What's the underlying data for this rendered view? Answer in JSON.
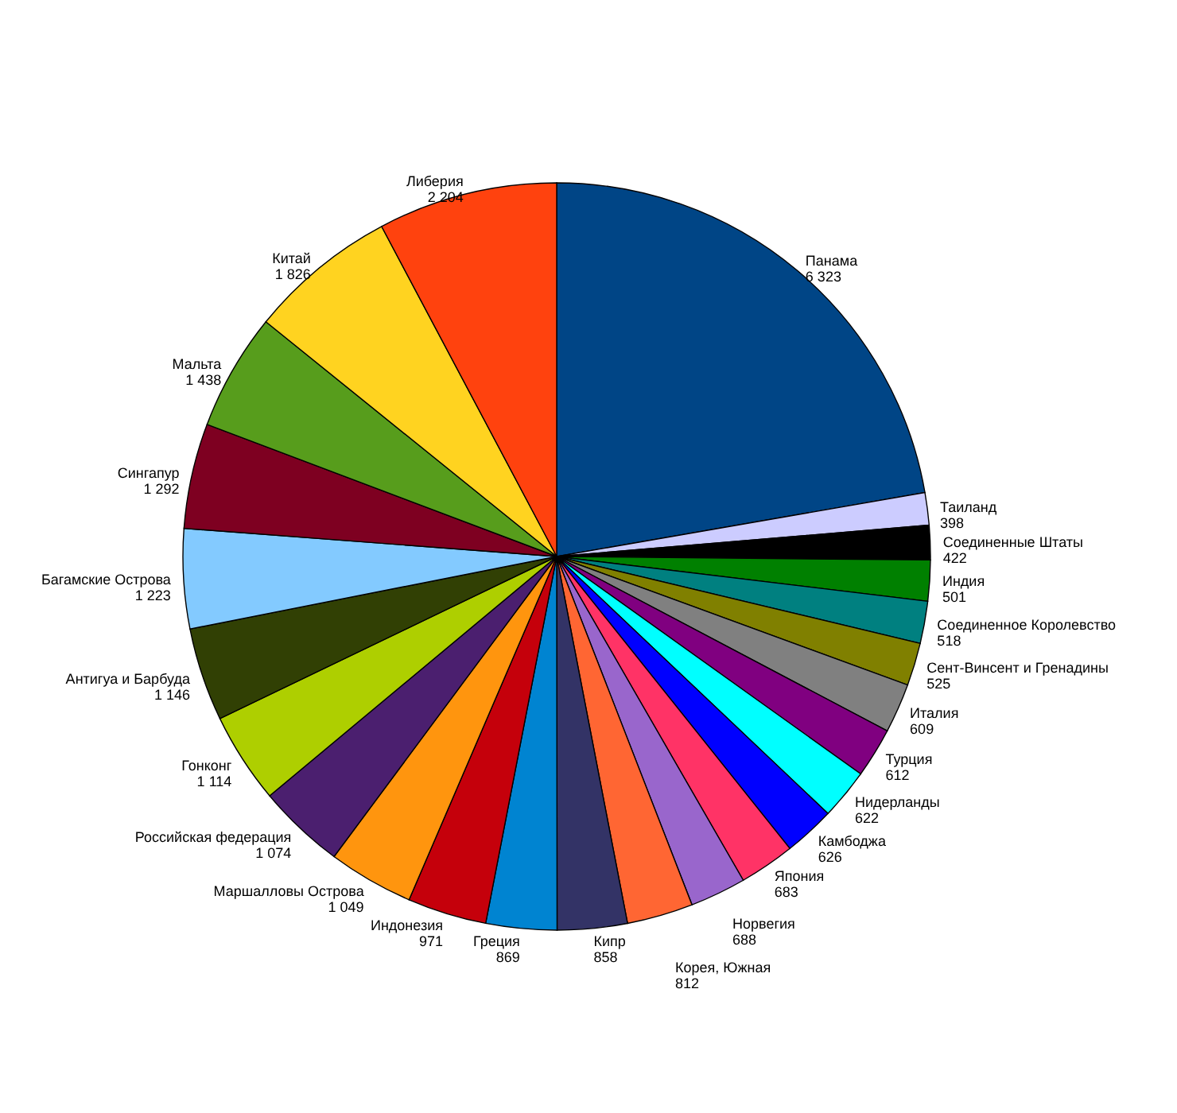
{
  "chart_data": {
    "type": "pie",
    "categories": [
      "Панама",
      "Таиланд",
      "Соединенные Штаты",
      "Индия",
      "Соединенное Королевство",
      "Сент-Винсент и Гренадины",
      "Италия",
      "Турция",
      "Нидерланды",
      "Камбоджа",
      "Япония",
      "Норвегия",
      "Корея, Южная",
      "Кипр",
      "Греция",
      "Индонезия",
      "Маршалловы Острова",
      "Российская федерация",
      "Гонконг",
      "Антигуа и Барбуда",
      "Багамские Острова",
      "Сингапур",
      "Мальта",
      "Китай",
      "Либерия"
    ],
    "values": [
      6323,
      398,
      422,
      501,
      518,
      525,
      609,
      612,
      622,
      626,
      683,
      688,
      812,
      858,
      869,
      971,
      1049,
      1074,
      1114,
      1146,
      1223,
      1292,
      1438,
      1826,
      2204
    ],
    "value_labels": [
      "6 323",
      "398",
      "422",
      "501",
      "518",
      "525",
      "609",
      "612",
      "622",
      "626",
      "683",
      "688",
      "812",
      "858",
      "869",
      "971",
      "1 049",
      "1 074",
      "1 114",
      "1 146",
      "1 223",
      "1 292",
      "1 438",
      "1 826",
      "2 204"
    ],
    "colors": [
      "#004586",
      "#ccccff",
      "#000000",
      "#008000",
      "#008080",
      "#808000",
      "#808080",
      "#800080",
      "#00ffff",
      "#0000ff",
      "#ff3366",
      "#9966cc",
      "#ff6633",
      "#333366",
      "#0084d1",
      "#c5000b",
      "#ff950e",
      "#4b1f6f",
      "#aecf00",
      "#314004",
      "#83caff",
      "#7e0021",
      "#579d1c",
      "#ffd320",
      "#ff420e"
    ]
  }
}
